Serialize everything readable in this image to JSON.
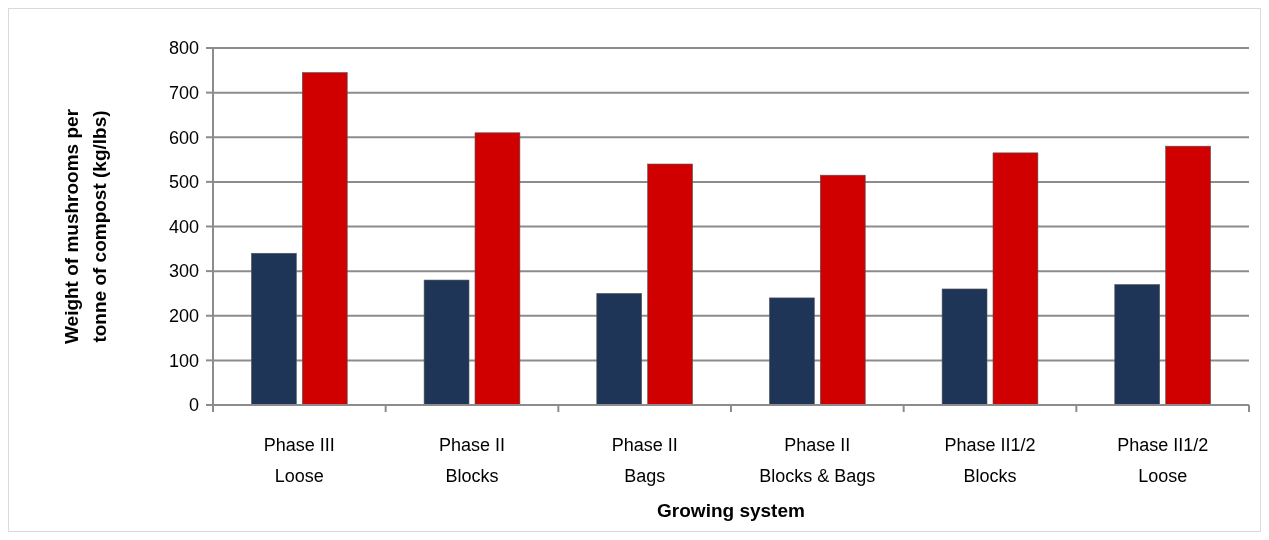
{
  "chart_data": {
    "type": "bar",
    "xlabel": "Growing system",
    "ylabel": "Weight of mushrooms  per\ntonne of compost (kg/lbs)",
    "categories": [
      "Phase III\nLoose",
      "Phase II\nBlocks",
      "Phase II\nBags",
      "Phase II\nBlocks & Bags",
      "Phase II1/2\nBlocks",
      "Phase II1/2\nLoose"
    ],
    "series": [
      {
        "color": "#1f3558",
        "values": [
          340,
          280,
          250,
          240,
          260,
          270
        ]
      },
      {
        "color": "#d00000",
        "values": [
          745,
          610,
          540,
          515,
          565,
          580
        ]
      }
    ],
    "ylim": [
      0,
      800
    ],
    "yticks": [
      0,
      100,
      200,
      300,
      400,
      500,
      600,
      700,
      800
    ],
    "grid": "y"
  }
}
